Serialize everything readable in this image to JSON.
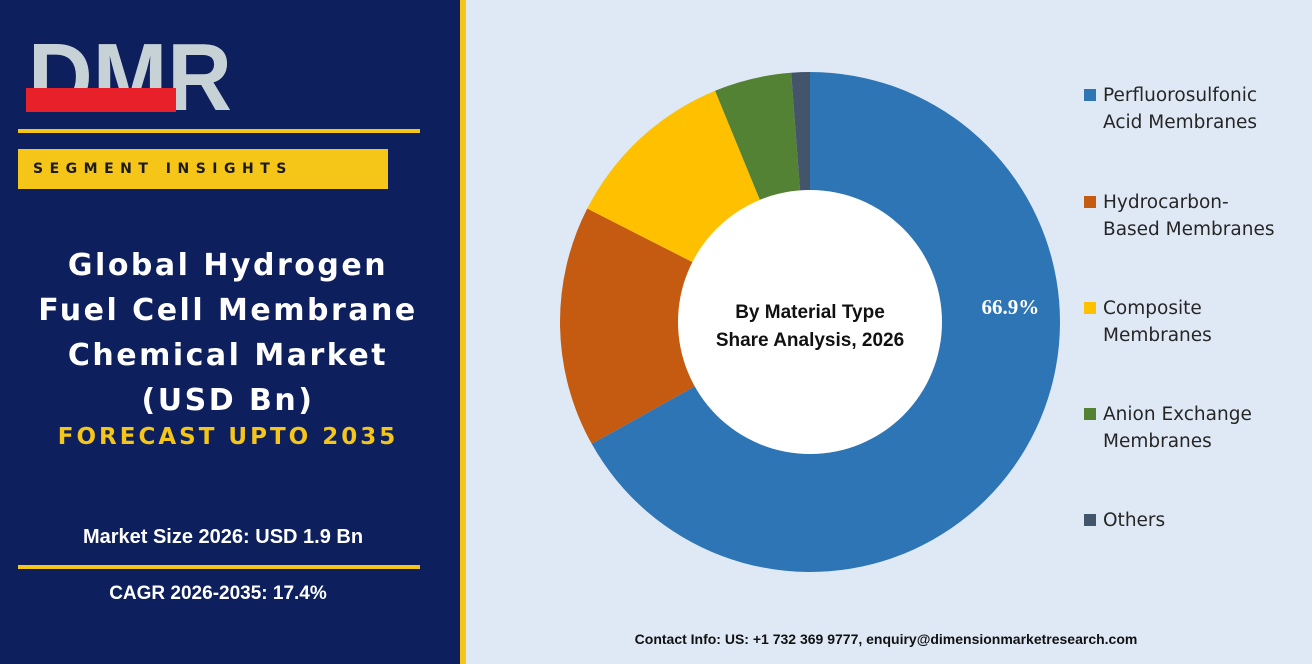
{
  "brand": {
    "logo_text": "DMR",
    "colors": {
      "navy": "#0d1f5c",
      "gold": "#f5c518",
      "logo_red": "#e8202a",
      "logo_grey": "#c7d2d6"
    }
  },
  "left_panel": {
    "badge": "SEGMENT INSIGHTS",
    "title_lines": [
      "Global Hydrogen",
      "Fuel Cell Membrane",
      "Chemical Market",
      "(USD Bn)"
    ],
    "forecast": "FORECAST UPTO 2035",
    "market_size": "Market Size 2026: USD 1.9 Bn",
    "cagr": "CAGR 2026-2035: 17.4%"
  },
  "footer": {
    "contact": "Contact Info: US: +1 732 369 9777, enquiry@dimensionmarketresearch.com"
  },
  "chart_data": {
    "type": "pie",
    "style": "donut",
    "center_label_lines": [
      "By Material Type",
      "Share Analysis, 2026"
    ],
    "categories": [
      "Perfluorosulfonic Acid Membranes",
      "Hydrocarbon-Based Membranes",
      "Composite Membranes",
      "Anion Exchange Membranes",
      "Others"
    ],
    "legend_lines": [
      [
        "Perfluorosulfonic",
        "Acid Membranes"
      ],
      [
        "Hydrocarbon-",
        "Based Membranes"
      ],
      [
        "Composite",
        "Membranes"
      ],
      [
        "Anion Exchange",
        "Membranes"
      ],
      [
        "Others"
      ]
    ],
    "values": [
      66.9,
      15.6,
      11.3,
      5.0,
      1.2
    ],
    "data_labels": [
      "66.9%",
      "",
      "",
      "",
      ""
    ],
    "colors": [
      "#2e75b6",
      "#c55a11",
      "#ffc000",
      "#548235",
      "#44546a"
    ],
    "start_angle_deg": 0,
    "direction": "clockwise",
    "legend_position": "right"
  }
}
